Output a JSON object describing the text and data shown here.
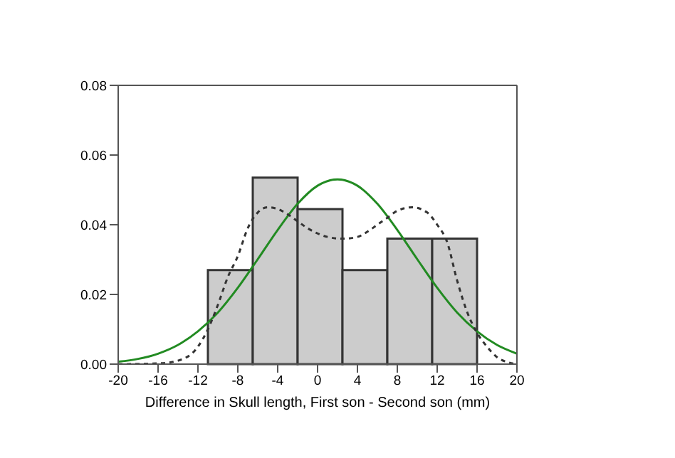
{
  "chart_data": {
    "type": "histogram",
    "xlabel": "Difference in Skull length, First son - Second son (mm)",
    "bins": [
      -11,
      -6.5,
      -2,
      2.5,
      7,
      11.5,
      16
    ],
    "values": [
      0.027,
      0.0535,
      0.0445,
      0.027,
      0.036,
      0.036
    ],
    "color": "#cccccc",
    "xlim": [
      -20,
      20
    ],
    "xticks": [
      -20,
      -16,
      -12,
      -8,
      -4,
      0,
      4,
      8,
      12,
      16,
      20
    ],
    "ylim": [
      0,
      0.08
    ],
    "yticks": [
      {
        "value": 0,
        "label": "0.00"
      },
      {
        "value": 0.02,
        "label": "0.02"
      },
      {
        "value": 0.04,
        "label": "0.04"
      },
      {
        "value": 0.06,
        "label": "0.06"
      },
      {
        "value": 0.08,
        "label": "0.08"
      }
    ],
    "grid": false,
    "series": [
      {
        "type": "line",
        "color": "#228b22",
        "line_style": "solid",
        "x": [
          -20,
          -18,
          -16,
          -14,
          -12,
          -10,
          -8,
          -6,
          -4,
          -2,
          0,
          2,
          4,
          6,
          8,
          10,
          12,
          14,
          16,
          18,
          20
        ],
        "values": [
          0.0007,
          0.0015,
          0.003,
          0.0055,
          0.0094,
          0.0148,
          0.0219,
          0.0301,
          0.0385,
          0.046,
          0.0512,
          0.053,
          0.0512,
          0.046,
          0.0385,
          0.0301,
          0.0219,
          0.0148,
          0.0094,
          0.0055,
          0.003
        ]
      },
      {
        "type": "line",
        "color": "#333333",
        "line_style": "dashed",
        "x": [
          -20,
          -16,
          -14,
          -12,
          -11,
          -10,
          -9,
          -8,
          -7,
          -6,
          -5,
          -4,
          -3,
          -2,
          -1,
          0,
          1,
          2.5,
          4,
          5,
          6,
          7,
          8,
          9.5,
          11,
          12,
          13,
          14,
          15,
          16,
          17,
          18,
          19,
          20
        ],
        "values": [
          0,
          0.0002,
          0.001,
          0.005,
          0.01,
          0.017,
          0.025,
          0.031,
          0.039,
          0.0435,
          0.045,
          0.0445,
          0.043,
          0.041,
          0.039,
          0.0375,
          0.0365,
          0.036,
          0.0365,
          0.038,
          0.04,
          0.042,
          0.044,
          0.045,
          0.0435,
          0.04,
          0.035,
          0.024,
          0.015,
          0.009,
          0.005,
          0.002,
          0.0006,
          0
        ]
      }
    ]
  }
}
